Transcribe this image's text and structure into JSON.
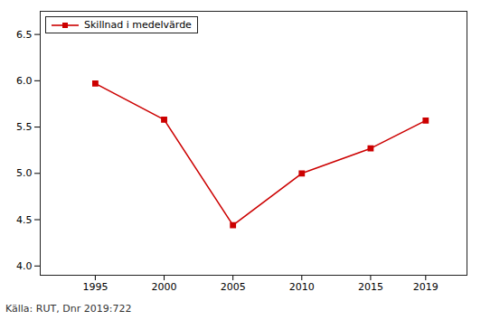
{
  "chart_data": {
    "type": "line",
    "x": [
      1995,
      2000,
      2005,
      2010,
      2015,
      2019
    ],
    "series": [
      {
        "name": "Skillnad i medelvärde",
        "color": "#cc0000",
        "marker": "square",
        "values": [
          5.97,
          5.58,
          4.44,
          5.0,
          5.27,
          5.57
        ]
      }
    ],
    "xlim": [
      1991,
      2022
    ],
    "xticks": [
      1995,
      2000,
      2005,
      2010,
      2015,
      2019
    ],
    "ylim": [
      3.9,
      6.75
    ],
    "yticks": [
      {
        "value": 4.0,
        "label": "4.0"
      },
      4.5,
      {
        "value": 5.0,
        "label": "5.0"
      },
      5.5,
      {
        "value": 6.0,
        "label": "6.0"
      },
      6.5
    ],
    "grid": false,
    "legend": "upper left",
    "caption": "Källa: RUT, Dnr 2019:722"
  }
}
